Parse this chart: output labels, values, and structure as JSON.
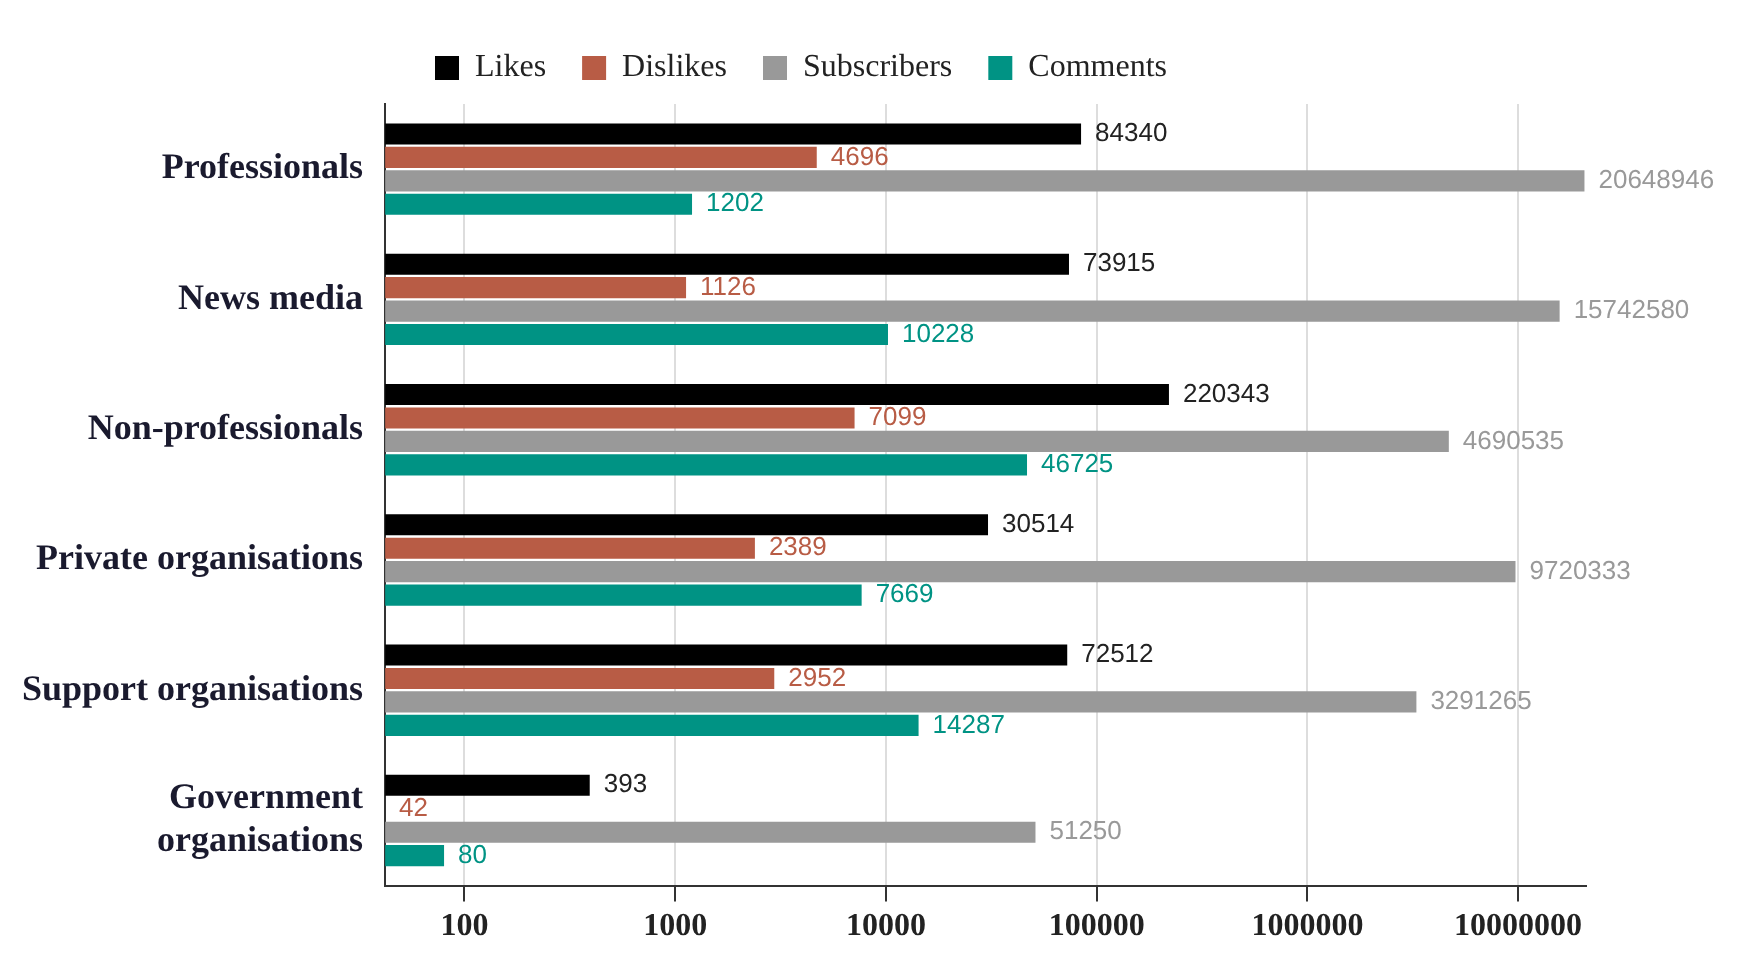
{
  "chart_data": {
    "type": "bar",
    "orientation": "horizontal",
    "log": "x",
    "categories": [
      "Professionals",
      "News media",
      "Non-professionals",
      "Private organisations",
      "Support organisations",
      "Government organisations"
    ],
    "series": [
      {
        "name": "Likes",
        "color": "#000000",
        "values": [
          84340,
          73915,
          220343,
          30514,
          72512,
          393
        ]
      },
      {
        "name": "Dislikes",
        "color": "#b85c45",
        "values": [
          4696,
          1126,
          7099,
          2389,
          2952,
          42
        ]
      },
      {
        "name": "Subscribers",
        "color": "#999999",
        "values": [
          20648946,
          15742580,
          4690535,
          9720333,
          3291265,
          51250
        ]
      },
      {
        "name": "Comments",
        "color": "#009384",
        "values": [
          1202,
          10228,
          46725,
          7669,
          14287,
          80
        ]
      }
    ],
    "xlim": [
      42,
      21000000
    ],
    "xticks": [
      100,
      1000,
      10000,
      100000,
      1000000,
      10000000
    ],
    "grid": "x",
    "legend": "top",
    "data_labels": true
  }
}
